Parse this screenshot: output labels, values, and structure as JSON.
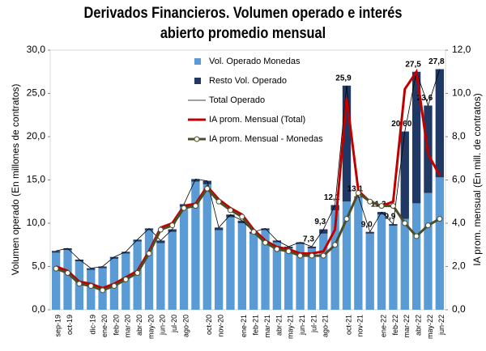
{
  "chart_data": {
    "type": "bar",
    "title": "Derivados Financieros. Volumen operado e interés abierto promedio mensual",
    "y_label": "Volumen operado (En millones de contratos)",
    "y2_label": "IA prom. mensual (En mill. de contratos)",
    "categories": [
      "sep-19",
      "oct-19",
      null,
      "dic-19",
      "ene-20",
      "feb-20",
      "mar-20",
      "abr-20",
      "may-20",
      "jun-20",
      "jul-20",
      "ago-20",
      null,
      "oct-20",
      "nov-20",
      null,
      "ene-21",
      "feb-21",
      "mar-21",
      "abr-21",
      "may-21",
      "jun-21",
      "jul-21",
      "ago-21",
      null,
      "oct-21",
      "nov-21",
      null,
      "ene-22",
      "feb-22",
      "mar-22",
      "abr-22",
      "may-22",
      "jun-22"
    ],
    "ylim": [
      0,
      30
    ],
    "yticks": [
      {
        "value": 0,
        "label": "0,0"
      },
      {
        "value": 5,
        "label": "5,0"
      },
      {
        "value": 10,
        "label": "10,0"
      },
      {
        "value": 15,
        "label": "15,0"
      },
      {
        "value": 20,
        "label": "20,0"
      },
      {
        "value": 25,
        "label": "25,0"
      },
      {
        "value": 30,
        "label": "30,0"
      }
    ],
    "y2lim": [
      0,
      12
    ],
    "y2ticks": [
      {
        "value": 0,
        "label": "0,0"
      },
      {
        "value": 2,
        "label": "2,0"
      },
      {
        "value": 4,
        "label": "4,0"
      },
      {
        "value": 6,
        "label": "6,0"
      },
      {
        "value": 8,
        "label": "8,0"
      },
      {
        "value": 10,
        "label": "10,0"
      },
      {
        "value": 12,
        "label": "12,0"
      }
    ],
    "series": [
      {
        "name": "Vol. Operado Monedas",
        "type": "bar",
        "color": "#5b9bd5",
        "values": [
          6.6,
          6.9,
          5.6,
          4.6,
          4.8,
          5.9,
          6.5,
          7.9,
          9.2,
          7.7,
          9.0,
          11.9,
          14.8,
          14.5,
          9.2,
          10.7,
          10.0,
          8.8,
          9.2,
          7.8,
          7.1,
          7.6,
          7.1,
          8.8,
          11.5,
          12.5,
          13.0,
          8.8,
          11.0,
          9.7,
          10.5,
          12.3,
          13.5,
          15.3
        ]
      },
      {
        "name": "Resto Vol. Operado",
        "type": "bar",
        "color": "#1f3864",
        "values": [
          0.2,
          0.2,
          0.2,
          0.2,
          0.2,
          0.2,
          0.2,
          0.2,
          0.2,
          0.3,
          0.3,
          0.3,
          0.3,
          0.4,
          0.3,
          0.3,
          0.3,
          0.2,
          0.2,
          0.2,
          0.2,
          0.2,
          0.2,
          0.5,
          0.6,
          13.4,
          0.1,
          0.2,
          0.3,
          0.2,
          10.1,
          15.2,
          10.1,
          12.5
        ]
      },
      {
        "name": "Total Operado",
        "type": "line",
        "color": "#000000",
        "values": [
          6.8,
          7.1,
          5.8,
          4.8,
          5.0,
          6.1,
          6.7,
          8.1,
          9.4,
          8.0,
          9.3,
          12.2,
          15.1,
          14.9,
          9.5,
          11.0,
          10.3,
          9.0,
          9.4,
          8.0,
          7.3,
          7.8,
          7.3,
          9.3,
          12.1,
          25.9,
          13.1,
          9.0,
          11.3,
          9.9,
          20.6,
          27.5,
          23.6,
          27.8
        ],
        "value_labels": [
          null,
          null,
          null,
          null,
          null,
          null,
          null,
          null,
          null,
          null,
          null,
          null,
          null,
          null,
          null,
          null,
          null,
          null,
          null,
          null,
          null,
          null,
          "7,3",
          "9,3",
          "12,1",
          "25,9",
          "13,1",
          "9,0",
          "11,3",
          "9,9",
          "20,60",
          "27,5",
          "23,6",
          "27,8"
        ]
      },
      {
        "name": "IA prom. Mensual (Total)",
        "type": "line",
        "axis": "y2",
        "color": "#c00000",
        "values": [
          2.0,
          1.8,
          1.3,
          1.2,
          1.0,
          1.2,
          1.5,
          1.8,
          2.7,
          3.8,
          4.0,
          4.8,
          4.9,
          5.7,
          5.1,
          4.7,
          4.4,
          3.7,
          3.2,
          2.9,
          2.8,
          2.6,
          2.6,
          2.7,
          3.7,
          9.8,
          5.5,
          5.0,
          4.8,
          5.0,
          10.2,
          11.0,
          7.2,
          6.2
        ]
      },
      {
        "name": "IA prom. Mensual - Monedas",
        "type": "line",
        "axis": "y2",
        "color": "#4d4d26",
        "marker": "circle",
        "values": [
          1.9,
          1.7,
          1.2,
          1.1,
          0.9,
          1.1,
          1.4,
          1.7,
          2.6,
          3.7,
          3.9,
          4.7,
          4.8,
          5.6,
          5.0,
          4.6,
          4.3,
          3.6,
          3.1,
          2.8,
          2.7,
          2.5,
          2.5,
          2.5,
          3.0,
          4.2,
          5.4,
          5.0,
          4.8,
          4.8,
          4.0,
          3.4,
          3.9,
          4.2
        ]
      }
    ]
  }
}
